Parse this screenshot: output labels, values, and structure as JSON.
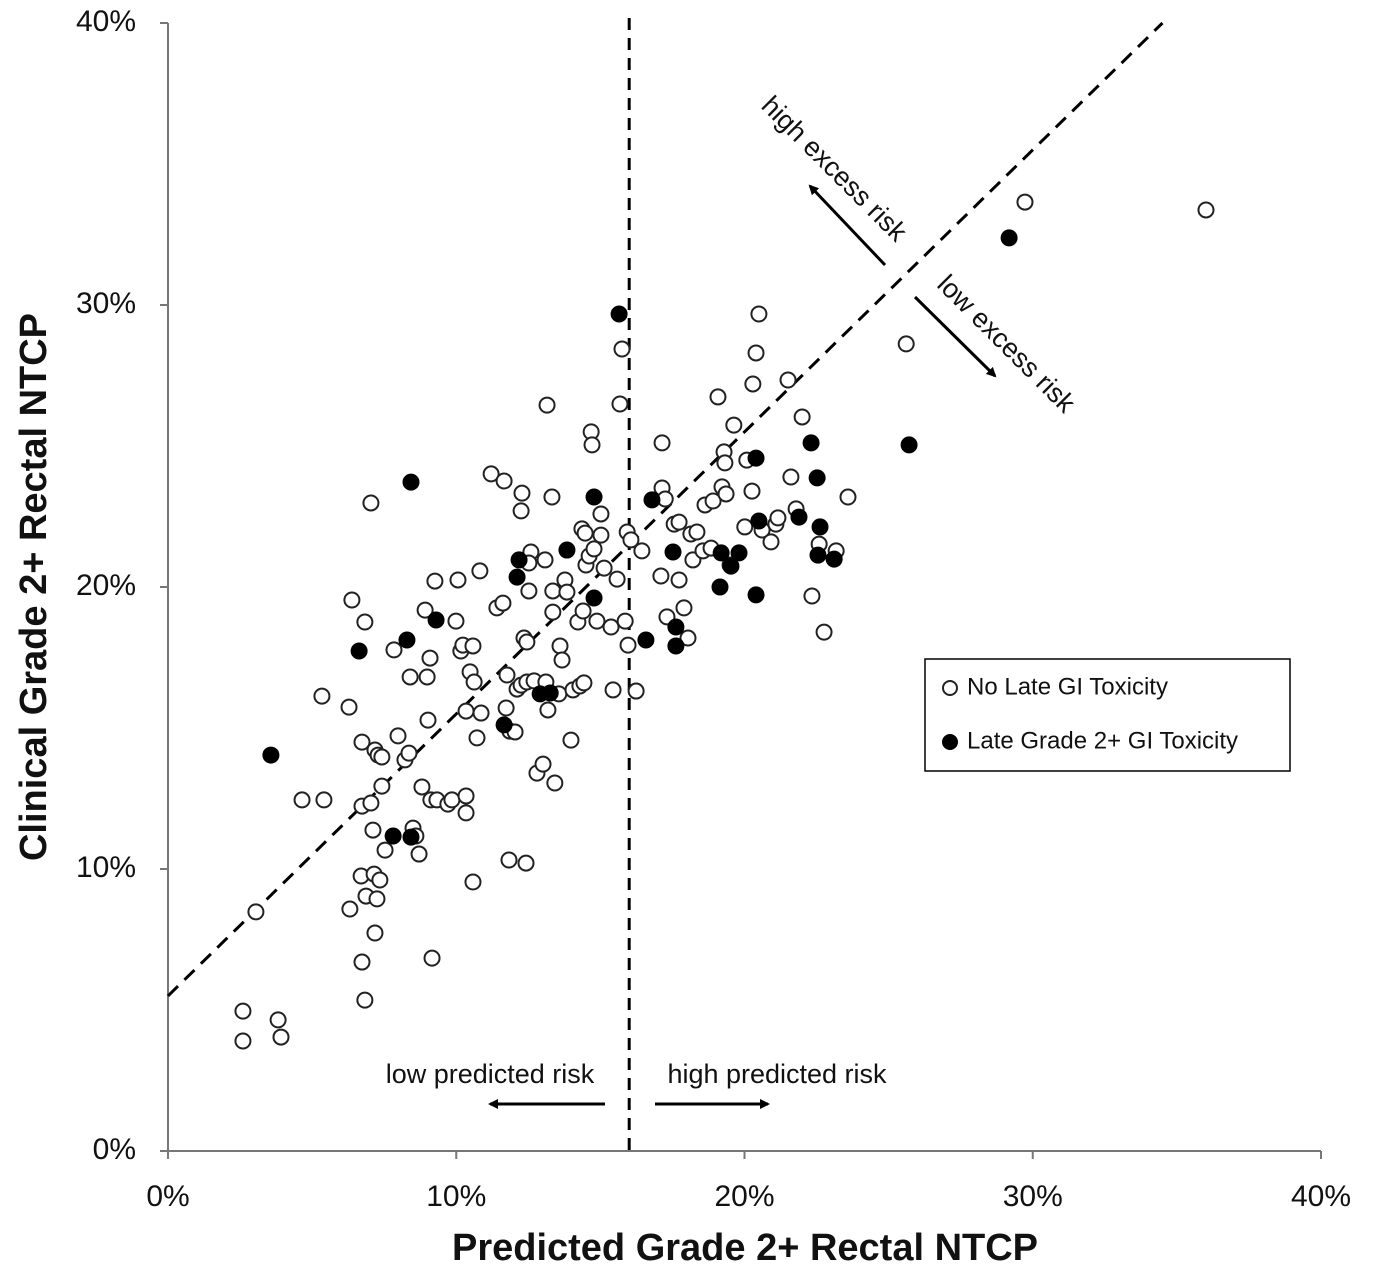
{
  "chart_data": {
    "type": "scatter",
    "x_label": "Predicted Grade 2+ Rectal NTCP",
    "y_label": "Clinical Grade 2+ Rectal NTCP",
    "xlim": [
      0,
      40
    ],
    "ylim": [
      0,
      40
    ],
    "xticks": [
      {
        "value": 0,
        "label": "0%"
      },
      {
        "value": 10,
        "label": "10%"
      },
      {
        "value": 20,
        "label": "20%"
      },
      {
        "value": 30,
        "label": "30%"
      },
      {
        "value": 40,
        "label": "40%"
      }
    ],
    "yticks": [
      {
        "value": 0,
        "label": "0%"
      },
      {
        "value": 10,
        "label": "10%"
      },
      {
        "value": 20,
        "label": "20%"
      },
      {
        "value": 30,
        "label": "30%"
      },
      {
        "value": 40,
        "label": "40%"
      }
    ],
    "vertical_line_x": 16,
    "diagonal_line": {
      "slope": 1,
      "intercept": 5.5
    },
    "annotations": [
      "high excess risk",
      "low excess risk",
      "low predicted risk",
      "high predicted risk"
    ],
    "series": [
      {
        "name": "No Late GI Toxicity",
        "color": "#222222",
        "filled": false,
        "x": [
          2.6,
          2.6,
          3.82,
          3.92,
          3.05,
          4.65,
          5.41,
          5.34,
          6.31,
          6.28,
          6.38,
          6.83,
          6.73,
          6.73,
          6.7,
          6.73,
          6.83,
          6.87,
          7.04,
          7.04,
          7.11,
          7.18,
          7.29,
          7.42,
          7.15,
          7.25,
          7.35,
          7.18,
          7.42,
          7.53,
          7.84,
          7.98,
          8.22,
          8.36,
          8.4,
          8.5,
          8.6,
          8.71,
          8.81,
          8.92,
          8.99,
          9.02,
          9.09,
          9.12,
          9.33,
          9.16,
          9.26,
          9.71,
          9.85,
          9.99,
          10.06,
          10.16,
          10.23,
          10.34,
          10.34,
          10.34,
          10.48,
          10.58,
          10.62,
          10.58,
          10.72,
          10.82,
          10.86,
          11.21,
          11.41,
          11.62,
          11.66,
          11.73,
          11.86,
          11.76,
          11.83,
          12.04,
          12.11,
          12.25,
          12.28,
          12.25,
          12.35,
          12.42,
          12.45,
          12.45,
          12.52,
          12.59,
          12.52,
          12.7,
          12.8,
          13.01,
          13.08,
          13.15,
          13.11,
          13.18,
          13.32,
          13.35,
          13.35,
          13.42,
          13.56,
          13.6,
          13.67,
          13.77,
          13.84,
          13.98,
          14.05,
          14.22,
          14.29,
          14.36,
          14.4,
          14.47,
          14.43,
          14.5,
          14.61,
          14.68,
          14.71,
          14.78,
          14.88,
          15.02,
          15.02,
          15.13,
          15.37,
          15.44,
          15.58,
          15.68,
          15.75,
          15.86,
          15.93,
          15.96,
          16.06,
          16.24,
          16.44,
          17.1,
          17.14,
          17.14,
          17.25,
          17.31,
          17.56,
          17.73,
          17.73,
          17.9,
          18.04,
          18.14,
          18.21,
          18.35,
          18.56,
          18.63,
          18.84,
          18.91,
          19.08,
          19.22,
          19.29,
          19.32,
          19.36,
          19.5,
          19.63,
          20.01,
          20.08,
          20.26,
          20.29,
          20.4,
          20.5,
          20.61,
          20.92,
          21.09,
          21.16,
          21.51,
          21.61,
          21.79,
          22.0,
          22.34,
          22.59,
          22.76,
          23.18,
          23.59,
          25.61,
          29.73,
          36.01
        ],
        "y": [
          4.96,
          3.9,
          4.65,
          4.04,
          8.48,
          12.45,
          12.45,
          16.13,
          8.58,
          15.74,
          19.54,
          18.76,
          14.5,
          12.23,
          9.75,
          6.7,
          5.35,
          9.04,
          22.98,
          12.34,
          11.38,
          14.22,
          14.04,
          13.97,
          9.82,
          8.94,
          9.61,
          7.73,
          12.94,
          10.67,
          17.77,
          14.72,
          13.87,
          14.11,
          16.81,
          11.45,
          11.17,
          10.53,
          12.91,
          19.18,
          16.81,
          15.28,
          17.48,
          12.45,
          12.45,
          6.84,
          20.21,
          12.3,
          12.45,
          18.79,
          20.25,
          17.73,
          17.94,
          12.59,
          11.99,
          15.6,
          16.99,
          17.91,
          16.63,
          9.54,
          14.65,
          20.57,
          15.53,
          24.01,
          19.26,
          19.43,
          23.76,
          15.71,
          14.89,
          16.88,
          10.32,
          14.86,
          16.38,
          16.52,
          23.33,
          22.7,
          18.19,
          10.21,
          16.63,
          18.05,
          19.86,
          21.24,
          20.85,
          16.67,
          13.4,
          13.72,
          20.96,
          26.45,
          16.63,
          15.64,
          23.19,
          19.11,
          19.86,
          13.05,
          16.21,
          17.91,
          17.41,
          20.25,
          19.82,
          14.57,
          16.35,
          18.76,
          16.49,
          22.06,
          19.15,
          21.91,
          16.6,
          20.78,
          21.1,
          25.5,
          25.04,
          21.35,
          18.79,
          22.59,
          21.84,
          20.67,
          18.58,
          16.35,
          20.28,
          26.49,
          28.44,
          18.79,
          21.95,
          17.94,
          21.67,
          16.31,
          21.28,
          20.39,
          23.51,
          25.11,
          23.12,
          18.94,
          22.23,
          20.25,
          22.3,
          19.26,
          18.19,
          21.88,
          20.96,
          21.95,
          21.28,
          22.91,
          21.38,
          23.05,
          26.74,
          23.55,
          24.79,
          24.4,
          23.3,
          20.78,
          25.74,
          22.13,
          24.5,
          23.4,
          27.2,
          28.3,
          29.68,
          22.02,
          21.6,
          22.23,
          22.45,
          27.34,
          23.9,
          22.77,
          26.03,
          19.68,
          21.52,
          18.4,
          21.28,
          23.19,
          28.62,
          33.65,
          33.37
        ]
      },
      {
        "name": "Late Grade 2+ GI Toxicity",
        "color": "#000000",
        "filled": true,
        "x": [
          15.65,
          29.18,
          25.71,
          8.43,
          3.57,
          6.63,
          8.29,
          9.3,
          7.81,
          8.43,
          11.66,
          12.18,
          12.11,
          12.91,
          13.26,
          13.84,
          14.78,
          14.78,
          16.58,
          16.79,
          17.52,
          17.62,
          17.62,
          19.19,
          19.15,
          19.53,
          19.81,
          20.4,
          20.4,
          20.5,
          21.89,
          22.31,
          22.52,
          22.55,
          22.62,
          23.11
        ],
        "y": [
          29.68,
          32.38,
          25.04,
          23.72,
          14.04,
          17.73,
          18.12,
          18.83,
          11.17,
          11.13,
          15.11,
          20.96,
          20.35,
          16.21,
          16.24,
          21.31,
          23.19,
          19.61,
          18.12,
          23.09,
          21.24,
          18.58,
          17.91,
          21.21,
          20.0,
          20.74,
          21.21,
          24.57,
          19.72,
          22.34,
          22.48,
          25.11,
          23.87,
          21.13,
          22.13,
          20.99
        ]
      }
    ]
  }
}
